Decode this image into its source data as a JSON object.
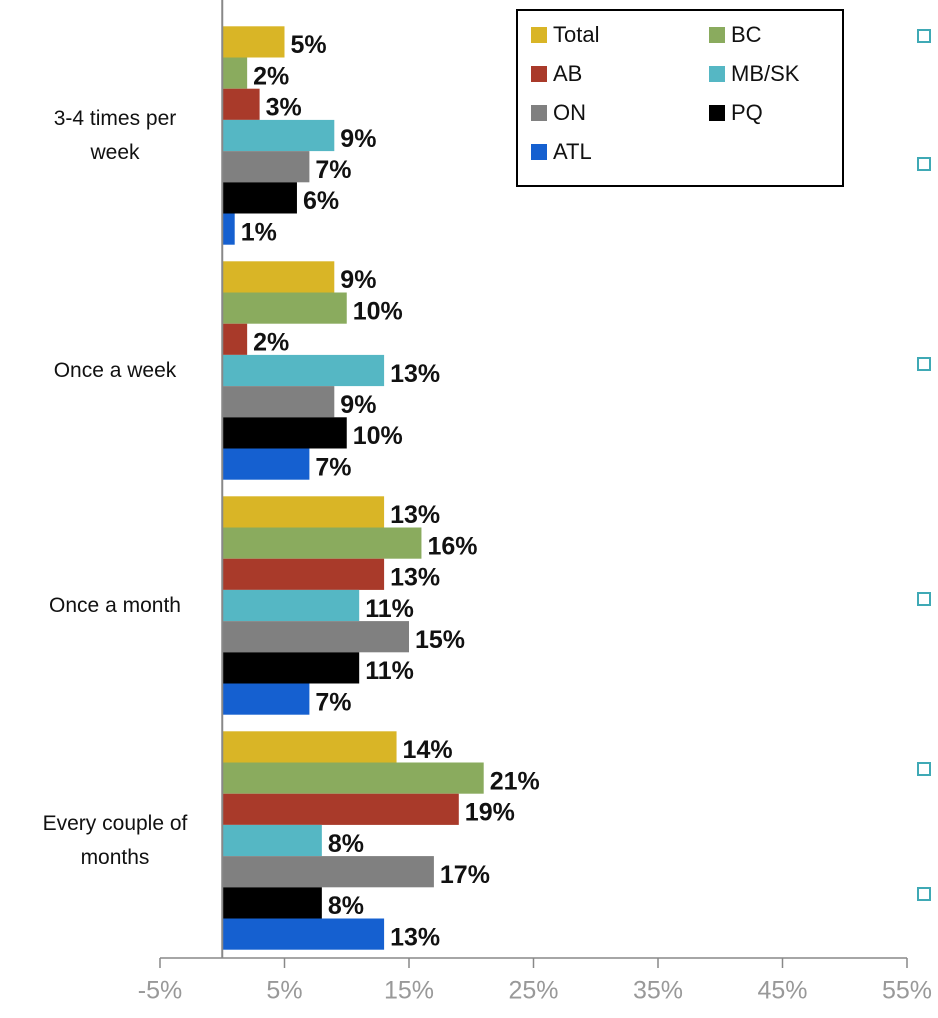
{
  "chart_data": {
    "type": "bar",
    "orientation": "horizontal",
    "categories": [
      "3-4 times per week",
      "Once a week",
      "Once a month",
      "Every couple of months"
    ],
    "series": [
      {
        "name": "Total",
        "color": "#d9b526",
        "values": [
          5,
          9,
          13,
          14
        ],
        "value_labels": [
          "5%",
          "9%",
          "13%",
          "14%"
        ]
      },
      {
        "name": "BC",
        "color": "#8aab5e",
        "values": [
          2,
          10,
          16,
          21
        ],
        "value_labels": [
          "2%",
          "10%",
          "16%",
          "21%"
        ]
      },
      {
        "name": "AB",
        "color": "#a93a2a",
        "values": [
          3,
          2,
          13,
          19
        ],
        "value_labels": [
          "3%",
          "2%",
          "13%",
          "19%"
        ]
      },
      {
        "name": "MB/SK",
        "color": "#55b7c4",
        "values": [
          9,
          13,
          11,
          8
        ],
        "value_labels": [
          "9%",
          "13%",
          "11%",
          "8%"
        ]
      },
      {
        "name": "ON",
        "color": "#808080",
        "values": [
          7,
          9,
          15,
          17
        ],
        "value_labels": [
          "7%",
          "9%",
          "15%",
          "17%"
        ]
      },
      {
        "name": "PQ",
        "color": "#000000",
        "values": [
          6,
          10,
          11,
          8
        ],
        "value_labels": [
          "6%",
          "10%",
          "11%",
          "8%"
        ]
      },
      {
        "name": "ATL",
        "color": "#1560d0",
        "values": [
          1,
          7,
          7,
          13
        ],
        "value_labels": [
          "1%",
          "7%",
          "7%",
          "13%"
        ]
      }
    ],
    "xlim": [
      -5,
      55
    ],
    "xticks": [
      {
        "value": -5,
        "label": "-5%"
      },
      {
        "value": 5,
        "label": "5%"
      },
      {
        "value": 15,
        "label": "15%"
      },
      {
        "value": 25,
        "label": "25%"
      },
      {
        "value": 35,
        "label": "35%"
      },
      {
        "value": 45,
        "label": "45%"
      },
      {
        "value": 55,
        "label": "55%"
      }
    ],
    "legend": "top-right"
  }
}
